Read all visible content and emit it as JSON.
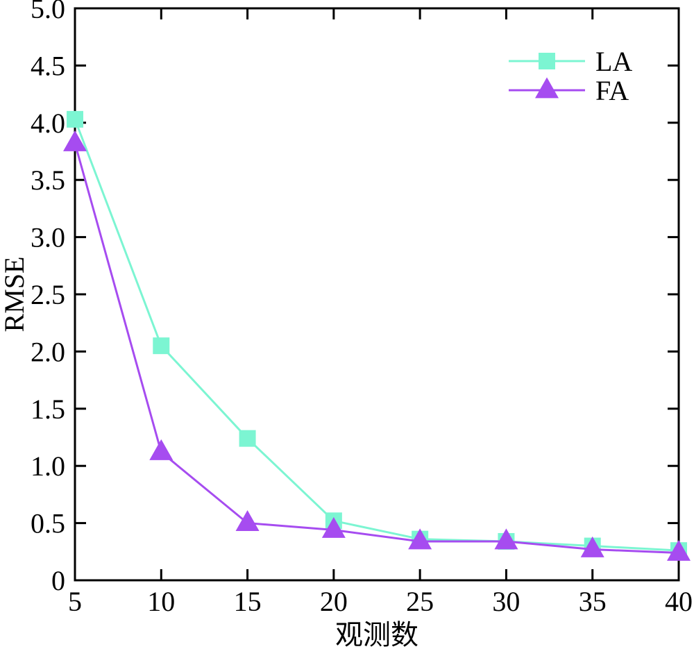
{
  "chart_data": {
    "type": "line",
    "xlabel": "观测数",
    "ylabel": "RMSE",
    "x": [
      5,
      10,
      15,
      20,
      25,
      30,
      35,
      40
    ],
    "xlim": [
      5,
      40
    ],
    "ylim": [
      0,
      5.0
    ],
    "x_ticks": [
      "5",
      "10",
      "15",
      "20",
      "25",
      "30",
      "35",
      "40"
    ],
    "y_ticks": [
      0,
      0.5,
      1.0,
      1.5,
      2.0,
      2.5,
      3.0,
      3.5,
      4.0,
      4.5,
      5.0
    ],
    "y_tick_labels": [
      "0",
      "0.5",
      "1.0",
      "1.5",
      "2.0",
      "2.5",
      "3.0",
      "3.5",
      "4.0",
      "4.5",
      "5.0"
    ],
    "grid": false,
    "legend_position": "top-right",
    "series": [
      {
        "name": "LA",
        "marker": "square",
        "color": "#7cf5d2",
        "values": [
          4.03,
          2.05,
          1.24,
          0.52,
          0.36,
          0.34,
          0.3,
          0.26
        ]
      },
      {
        "name": "FA",
        "marker": "triangle",
        "color": "#a64cf0",
        "values": [
          3.82,
          1.12,
          0.5,
          0.44,
          0.34,
          0.34,
          0.27,
          0.24
        ]
      }
    ]
  }
}
